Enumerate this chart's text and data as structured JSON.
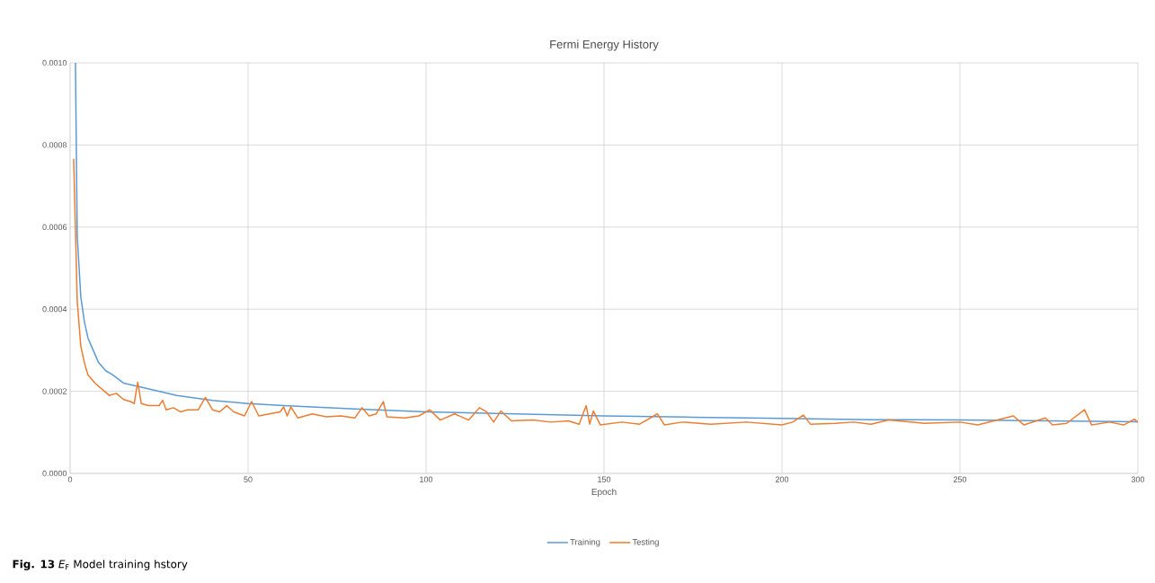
{
  "chart_data": {
    "type": "line",
    "title": "Fermi Energy History",
    "xlabel": "Epoch",
    "annotations": [
      "**Fig. 13** *E*$_{F}$ Model training hstory"
    ],
    "xlim": [
      0,
      300
    ],
    "xticks": [
      0,
      50,
      100,
      150,
      200,
      250,
      300
    ],
    "ylim": [
      0,
      0.001
    ],
    "yticks": [
      {
        "value": 0,
        "label": "0.0000"
      },
      {
        "value": 0.0002,
        "label": "0.0002"
      },
      {
        "value": 0.0004,
        "label": "0.0004"
      },
      {
        "value": 0.0006,
        "label": "0.0006"
      },
      {
        "value": 0.0008,
        "label": "0.0008"
      },
      {
        "value": 0.001,
        "label": "0.0010"
      }
    ],
    "grid": true,
    "legend": "bottom",
    "marker": "none",
    "series": [
      {
        "name": "Training",
        "color": "#5b9bd5",
        "x": [
          1.5,
          2,
          3,
          4,
          5,
          6,
          8,
          10,
          12,
          15,
          20,
          25,
          30,
          40,
          50,
          60,
          80,
          100,
          125,
          150,
          175,
          200,
          225,
          250,
          275,
          300
        ],
        "values": [
          0.001,
          0.00058,
          0.00043,
          0.00037,
          0.00033,
          0.00031,
          0.00027,
          0.00025,
          0.00024,
          0.00022,
          0.00021,
          0.0002,
          0.00019,
          0.000178,
          0.00017,
          0.000165,
          0.000157,
          0.00015,
          0.000145,
          0.00014,
          0.000137,
          0.000134,
          0.000131,
          0.00013,
          0.000128,
          0.000126
        ]
      },
      {
        "name": "Testing",
        "color": "#ed7d31",
        "x": [
          1,
          2,
          3,
          4,
          5,
          7,
          9,
          11,
          13,
          15,
          17,
          18,
          19,
          20,
          22,
          25,
          26,
          27,
          29,
          31,
          33,
          36,
          38,
          40,
          42,
          44,
          46,
          49,
          51,
          53,
          56,
          59,
          60,
          61,
          62,
          64,
          68,
          72,
          76,
          80,
          82,
          84,
          86,
          88,
          89,
          94,
          98,
          101,
          104,
          108,
          112,
          115,
          117,
          119,
          121,
          124,
          130,
          135,
          140,
          143,
          145,
          146,
          147,
          149,
          155,
          160,
          165,
          167,
          172,
          180,
          190,
          200,
          203,
          206,
          208,
          215,
          220,
          225,
          230,
          240,
          250,
          255,
          265,
          268,
          274,
          276,
          280,
          285,
          287,
          292,
          296,
          299,
          300
        ],
        "values": [
          0.000765,
          0.00042,
          0.00031,
          0.00027,
          0.00024,
          0.00022,
          0.000205,
          0.00019,
          0.000195,
          0.00018,
          0.000175,
          0.00017,
          0.000222,
          0.00017,
          0.000165,
          0.000165,
          0.000178,
          0.000155,
          0.00016,
          0.00015,
          0.000155,
          0.000155,
          0.000185,
          0.000155,
          0.00015,
          0.000165,
          0.00015,
          0.00014,
          0.000175,
          0.00014,
          0.000145,
          0.00015,
          0.000162,
          0.00014,
          0.000162,
          0.000135,
          0.000145,
          0.000138,
          0.00014,
          0.000135,
          0.00016,
          0.00014,
          0.000145,
          0.000175,
          0.000138,
          0.000135,
          0.00014,
          0.000155,
          0.00013,
          0.000145,
          0.00013,
          0.00016,
          0.00015,
          0.000125,
          0.000152,
          0.000128,
          0.00013,
          0.000125,
          0.000128,
          0.00012,
          0.000165,
          0.00012,
          0.000152,
          0.000118,
          0.000125,
          0.00012,
          0.000145,
          0.000118,
          0.000125,
          0.00012,
          0.000125,
          0.000118,
          0.000125,
          0.000142,
          0.00012,
          0.000122,
          0.000125,
          0.00012,
          0.00013,
          0.000122,
          0.000125,
          0.000118,
          0.00014,
          0.000118,
          0.000135,
          0.000118,
          0.000122,
          0.000155,
          0.000118,
          0.000125,
          0.000118,
          0.000132,
          0.000125
        ]
      }
    ]
  }
}
